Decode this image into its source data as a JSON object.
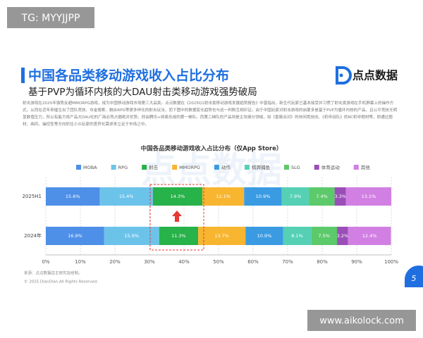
{
  "watermark_top": "TG: MYYJJPP",
  "slide": {
    "title": "中国各品类移动游戏收入占比分布",
    "subtitle": "基于PVP为循环内核的大DAU射击类移动游戏强势破局",
    "logo": "点点数据",
    "body": "射击游戏在2025年强势反超MMORPG游戏，成为中国移动游戏市场第三大品类。点点数据在《2025Q1射击类移动游戏发展趋势报告》中曾指出，新生代玩家已基本接受并习惯了射击类游戏在手机屏幕上的操作方式，从而在近年来催生出了团队竞技、夺金搜索、融合RPG等更多样化的射击玩法，而下图中的数据变化趋势也与这一判断互相印证。由于中国玩家对射击游戏的启蒙多是基于PVP为循环内核的产品，且公平竞技无明显数值压力，所以有能力将产品大DAU化的厂商必然占据绝对优势，即由腾讯+网易形成的第一梯队。而第二梯队的产品则是主攻细分领域，如《香肠派对》的休闲竞技向、《机甲战队》的RC机甲题材等，即通过题材、画风、操控性等方向抓住小众玩家的差异化需求来立足于市场之中。",
    "chart_watermark": "点点数据",
    "source": "来源：点点数据自主研究及绘制。",
    "copyright": "© 2025 DianDian.All Rights Reserved.",
    "page_number": "5"
  },
  "chart_data": {
    "type": "stacked_barh",
    "title": "中国各品类移动游戏收入占比分布（仅App Store）",
    "categories": [
      "2025H1",
      "2024年"
    ],
    "series": [
      {
        "name": "MOBA",
        "color": "#4e8fe8",
        "values": [
          15.6,
          16.9
        ],
        "value_labels": [
          "15.6%",
          "16.9%"
        ]
      },
      {
        "name": "RPG",
        "color": "#6cc3ea",
        "values": [
          15.4,
          15.9
        ],
        "value_labels": [
          "15.4%",
          "15.9%"
        ]
      },
      {
        "name": "射击",
        "color": "#27b24a",
        "values": [
          14.3,
          11.3
        ],
        "value_labels": [
          "14.3%",
          "11.3%"
        ]
      },
      {
        "name": "MMORPG",
        "color": "#f7b530",
        "values": [
          12.1,
          13.7
        ],
        "value_labels": [
          "12.1%",
          "13.7%"
        ]
      },
      {
        "name": "动作",
        "color": "#3a9be3",
        "values": [
          10.9,
          10.9
        ],
        "value_labels": [
          "10.9%",
          "10.9%"
        ]
      },
      {
        "name": "棋牌捕鱼",
        "color": "#55d0b5",
        "values": [
          7.9,
          8.1
        ],
        "value_labels": [
          "7.9%",
          "8.1%"
        ]
      },
      {
        "name": "SLG",
        "color": "#5cc96a",
        "values": [
          7.4,
          7.5
        ],
        "value_labels": [
          "7.4%",
          "7.5%"
        ]
      },
      {
        "name": "体育运动",
        "color": "#9a4fb8",
        "values": [
          3.3,
          3.2
        ],
        "value_labels": [
          "3.3%",
          "3.2%"
        ]
      },
      {
        "name": "其他",
        "color": "#d27fe3",
        "values": [
          13.1,
          12.4
        ],
        "value_labels": [
          "13.1%",
          "12.4%"
        ]
      }
    ],
    "xlim": [
      0,
      100
    ],
    "xticks": [
      {
        "value": 0,
        "label": "0%"
      },
      {
        "value": 10,
        "label": "10%"
      },
      {
        "value": 20,
        "label": "20%"
      },
      {
        "value": 30,
        "label": "30%"
      },
      {
        "value": 40,
        "label": "40%"
      },
      {
        "value": 50,
        "label": "50%"
      },
      {
        "value": 60,
        "label": "60%"
      },
      {
        "value": 70,
        "label": "70%"
      },
      {
        "value": 80,
        "label": "80%"
      },
      {
        "value": 90,
        "label": "90%"
      },
      {
        "value": 100,
        "label": "100%"
      }
    ],
    "grid": true
  },
  "watermark_bottom": "www.aikolock.com"
}
